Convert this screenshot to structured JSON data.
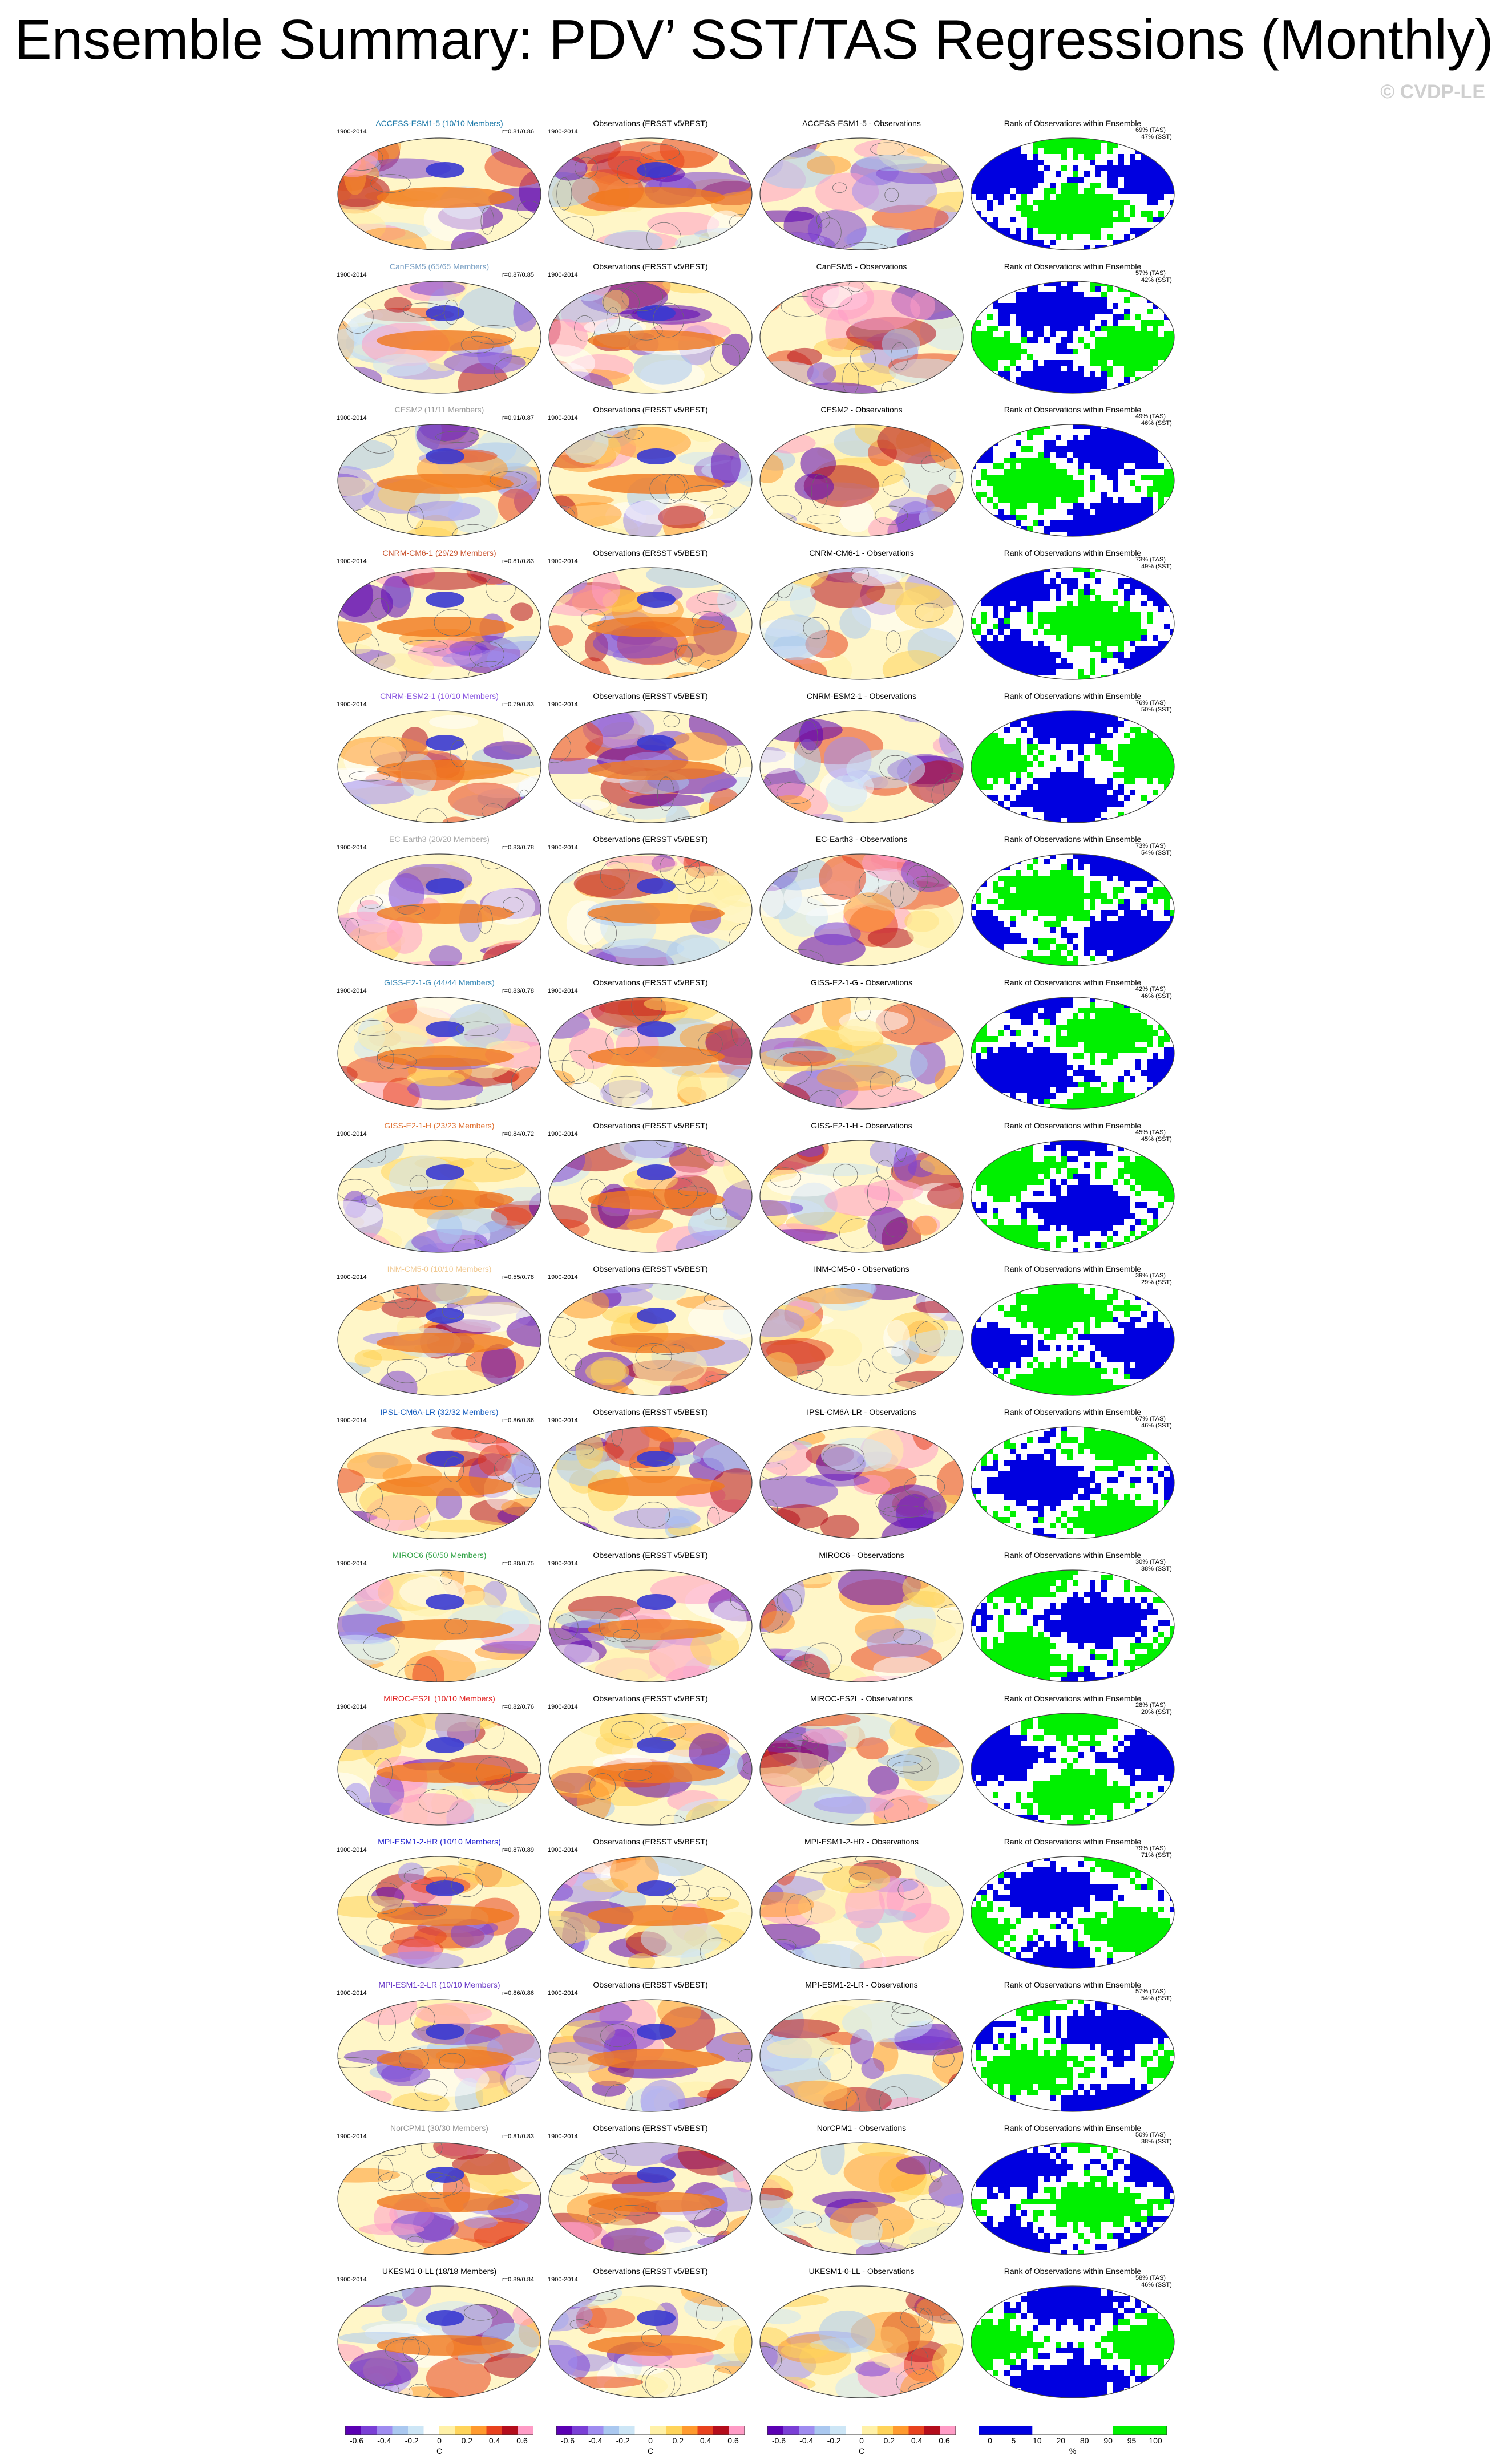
{
  "title": "Ensemble Summary: PDV’ SST/TAS Regressions (Monthly)",
  "watermark": "© CVDP-LE",
  "period": "1900-2014",
  "obs_title": "Observations (ERSST v5/BEST)",
  "rank_title": "Rank of Observations within Ensemble",
  "colors": {
    "diverging": [
      "#5b00b3",
      "#7a3fd6",
      "#9f8cf0",
      "#aac8f0",
      "#cde6f6",
      "#ffffff",
      "#fff1a8",
      "#ffd45a",
      "#ff9a2e",
      "#e8421e",
      "#b40d1c",
      "#ff9cc6"
    ],
    "rank_low": "#0000e0",
    "rank_mid": "#ffffff",
    "rank_high": "#00f000"
  },
  "models": [
    {
      "label": "ACCESS-ESM1-5 (10/10 Members)",
      "color": "#1a78a8",
      "r": "r=0.81/0.86",
      "diff": "ACCESS-ESM1-5 - Observations",
      "pct_tas": "69% (TAS)",
      "pct_sst": "47% (SST)"
    },
    {
      "label": "CanESM5 (65/65 Members)",
      "color": "#7aa0c4",
      "r": "r=0.87/0.85",
      "diff": "CanESM5 - Observations",
      "pct_tas": "57% (TAS)",
      "pct_sst": "42% (SST)"
    },
    {
      "label": "CESM2 (11/11 Members)",
      "color": "#9a9a9a",
      "r": "r=0.91/0.87",
      "diff": "CESM2 - Observations",
      "pct_tas": "49% (TAS)",
      "pct_sst": "46% (SST)"
    },
    {
      "label": "CNRM-CM6-1 (29/29 Members)",
      "color": "#c8502a",
      "r": "r=0.81/0.83",
      "diff": "CNRM-CM6-1 - Observations",
      "pct_tas": "73% (TAS)",
      "pct_sst": "49% (SST)"
    },
    {
      "label": "CNRM-ESM2-1 (10/10 Members)",
      "color": "#8a56e0",
      "r": "r=0.79/0.83",
      "diff": "CNRM-ESM2-1 - Observations",
      "pct_tas": "76% (TAS)",
      "pct_sst": "50% (SST)"
    },
    {
      "label": "EC-Earth3 (20/20 Members)",
      "color": "#aaaaaa",
      "r": "r=0.83/0.78",
      "diff": "EC-Earth3 - Observations",
      "pct_tas": "73% (TAS)",
      "pct_sst": "54% (SST)"
    },
    {
      "label": "GISS-E2-1-G (44/44 Members)",
      "color": "#3a8ab8",
      "r": "r=0.83/0.78",
      "diff": "GISS-E2-1-G - Observations",
      "pct_tas": "42% (TAS)",
      "pct_sst": "46% (SST)"
    },
    {
      "label": "GISS-E2-1-H (23/23 Members)",
      "color": "#e07030",
      "r": "r=0.84/0.72",
      "diff": "GISS-E2-1-H - Observations",
      "pct_tas": "45% (TAS)",
      "pct_sst": "45% (SST)"
    },
    {
      "label": "INM-CM5-0 (10/10 Members)",
      "color": "#f0c890",
      "r": "r=0.55/0.78",
      "diff": "INM-CM5-0 - Observations",
      "pct_tas": "39% (TAS)",
      "pct_sst": "29% (SST)"
    },
    {
      "label": "IPSL-CM6A-LR (32/32 Members)",
      "color": "#1a60c0",
      "r": "r=0.86/0.86",
      "diff": "IPSL-CM6A-LR - Observations",
      "pct_tas": "67% (TAS)",
      "pct_sst": "46% (SST)"
    },
    {
      "label": "MIROC6 (50/50 Members)",
      "color": "#2aa040",
      "r": "r=0.88/0.75",
      "diff": "MIROC6 - Observations",
      "pct_tas": "30% (TAS)",
      "pct_sst": "38% (SST)"
    },
    {
      "label": "MIROC-ES2L (10/10 Members)",
      "color": "#e02020",
      "r": "r=0.82/0.76",
      "diff": "MIROC-ES2L - Observations",
      "pct_tas": "28% (TAS)",
      "pct_sst": "20% (SST)"
    },
    {
      "label": "MPI-ESM1-2-HR (10/10 Members)",
      "color": "#2020d0",
      "r": "r=0.87/0.89",
      "diff": "MPI-ESM1-2-HR - Observations",
      "pct_tas": "79% (TAS)",
      "pct_sst": "71% (SST)"
    },
    {
      "label": "MPI-ESM1-2-LR (10/10 Members)",
      "color": "#6a3ac8",
      "r": "r=0.86/0.86",
      "diff": "MPI-ESM1-2-LR - Observations",
      "pct_tas": "57% (TAS)",
      "pct_sst": "54% (SST)"
    },
    {
      "label": "NorCPM1 (30/30 Members)",
      "color": "#909090",
      "r": "r=0.81/0.83",
      "diff": "NorCPM1 - Observations",
      "pct_tas": "50% (TAS)",
      "pct_sst": "38% (SST)"
    },
    {
      "label": "UKESM1-0-LL (18/18 Members)",
      "color": "#000000",
      "r": "r=0.89/0.84",
      "diff": "UKESM1-0-LL - Observations",
      "pct_tas": "58% (TAS)",
      "pct_sst": "46% (SST)"
    }
  ],
  "colorbar_regression": {
    "ticks": [
      "-0.6",
      "-0.4",
      "-0.2",
      "0",
      "0.2",
      "0.4",
      "0.6"
    ],
    "unit": "C"
  },
  "colorbar_rank": {
    "ticks": [
      "0",
      "5",
      "10",
      "20",
      "80",
      "90",
      "95",
      "100"
    ],
    "unit": "%"
  }
}
